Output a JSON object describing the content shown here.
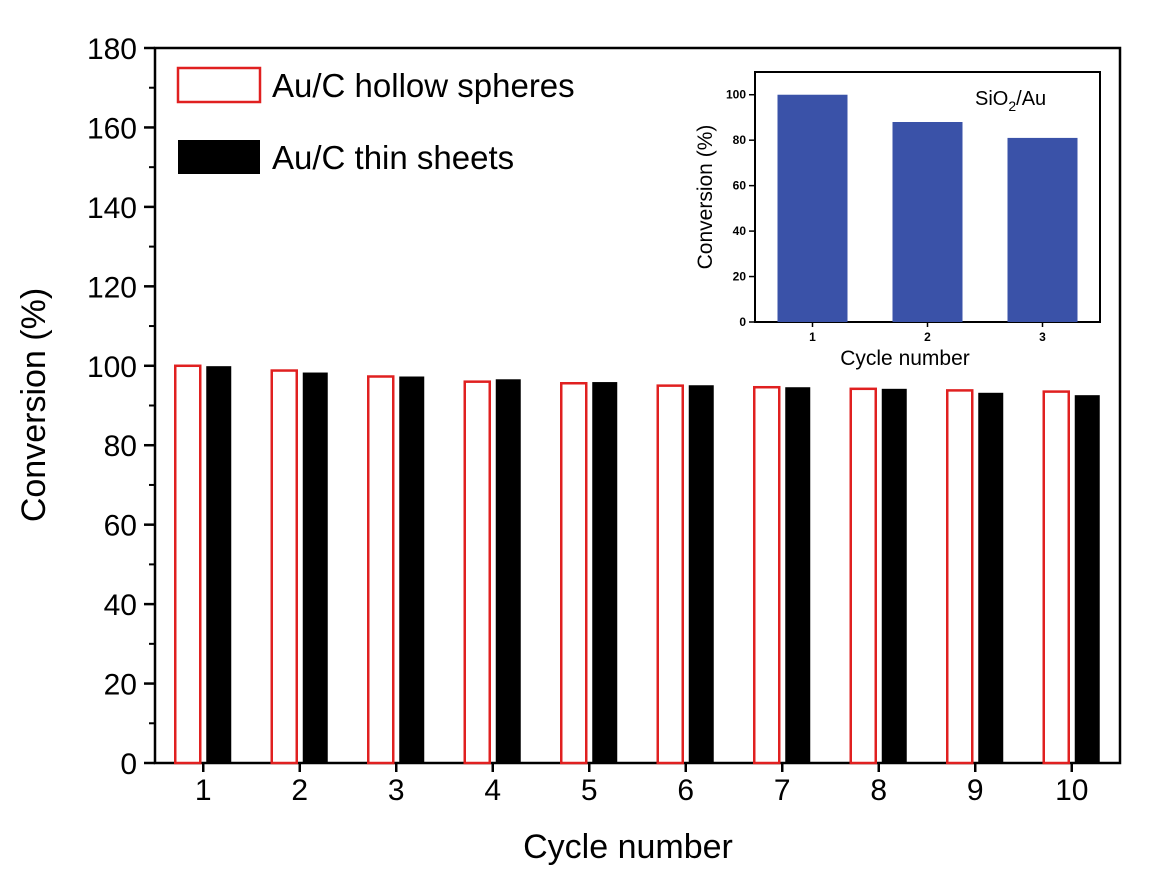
{
  "chart_data": [
    {
      "type": "bar",
      "xlabel": "Cycle number",
      "ylabel": "Conversion (%)",
      "ylim": [
        0,
        180
      ],
      "yticks": [
        0,
        20,
        40,
        60,
        80,
        100,
        120,
        140,
        160,
        180
      ],
      "categories": [
        "1",
        "2",
        "3",
        "4",
        "5",
        "6",
        "7",
        "8",
        "9",
        "10"
      ],
      "series": [
        {
          "name": "Au/C hollow spheres",
          "style": "outline",
          "color": "#e02020",
          "values": [
            100,
            98.8,
            97.3,
            96,
            95.6,
            95,
            94.6,
            94.2,
            93.8,
            93.5
          ]
        },
        {
          "name": "Au/C thin sheets",
          "style": "filled",
          "color": "#000000",
          "values": [
            99.9,
            98.3,
            97.3,
            96.6,
            95.9,
            95.1,
            94.6,
            94.2,
            93.2,
            92.6
          ]
        }
      ],
      "legend_position": "top-left",
      "grid": false
    },
    {
      "type": "bar",
      "role": "inset",
      "annotation_parts": {
        "base": "SiO",
        "subscript": "2",
        "suffix": "/Au"
      },
      "xlabel": "Cycle number",
      "ylabel": "Conversion (%)",
      "ylim": [
        0,
        110
      ],
      "yticks": [
        0,
        20,
        40,
        60,
        80,
        100
      ],
      "categories": [
        "1",
        "2",
        "3"
      ],
      "values": [
        100,
        88,
        81
      ],
      "bar_color": "#3a52a8",
      "grid": false
    }
  ]
}
